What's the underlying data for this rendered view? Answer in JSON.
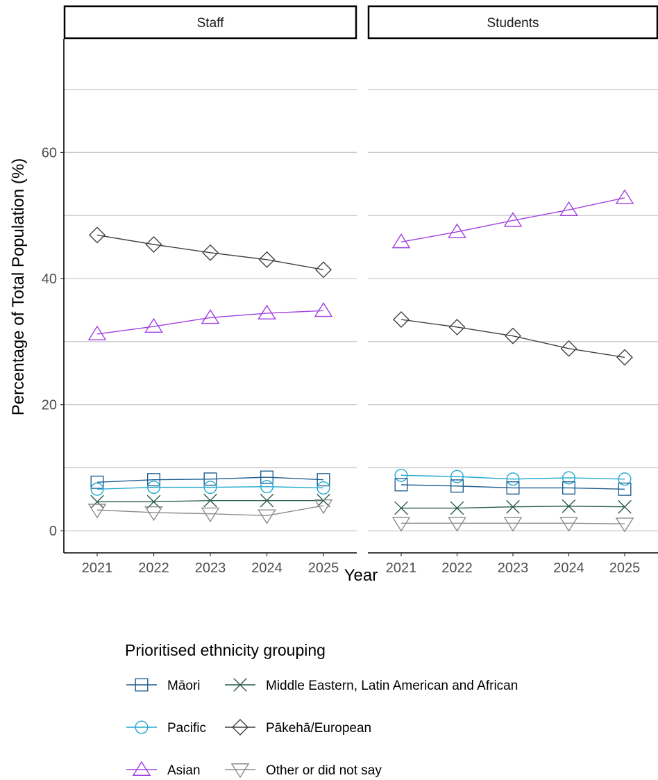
{
  "chart_data": {
    "type": "line",
    "ylabel": "Percentage of Total Population (%)",
    "xlabel": "Year",
    "ylim": [
      -3.5,
      78
    ],
    "y_ticks": [
      0,
      20,
      40,
      60
    ],
    "y_minor_grid": [
      10,
      30,
      50,
      70
    ],
    "x": [
      "2021",
      "2022",
      "2023",
      "2024",
      "2025"
    ],
    "grid": "horizontal",
    "legend_position": "bottom",
    "legend_title": "Prioritised ethnicity grouping",
    "colors": {
      "Māori": "#1f5f91",
      "Middle Eastern, Latin American and African": "#2a5a48",
      "Pacific": "#21a8d0",
      "Pākehā/European": "#404040",
      "Asian": "#a040e0",
      "Other or did not say": "#8c8c8c"
    },
    "markers": {
      "Māori": "square",
      "Middle Eastern, Latin American and African": "x",
      "Pacific": "circle",
      "Pākehā/European": "diamond",
      "Asian": "triangle-up",
      "Other or did not say": "triangle-down"
    },
    "legend_order": [
      "Māori",
      "Middle Eastern, Latin American and African",
      "Pacific",
      "Pākehā/European",
      "Asian",
      "Other or did not say"
    ],
    "panels": [
      {
        "title": "Staff",
        "series": [
          {
            "name": "Pākehā/European",
            "values": [
              46.9,
              45.4,
              44.1,
              43.0,
              41.4
            ]
          },
          {
            "name": "Asian",
            "values": [
              31.2,
              32.4,
              33.8,
              34.5,
              34.9
            ]
          },
          {
            "name": "Māori",
            "values": [
              7.7,
              8.1,
              8.2,
              8.5,
              8.1
            ]
          },
          {
            "name": "Pacific",
            "values": [
              6.6,
              6.9,
              6.9,
              7.0,
              6.8
            ]
          },
          {
            "name": "Middle Eastern, Latin American and African",
            "values": [
              4.6,
              4.6,
              4.8,
              4.8,
              4.8
            ]
          },
          {
            "name": "Other or did not say",
            "values": [
              3.3,
              2.9,
              2.7,
              2.4,
              4.0
            ]
          }
        ]
      },
      {
        "title": "Students",
        "series": [
          {
            "name": "Asian",
            "values": [
              45.8,
              47.4,
              49.2,
              50.9,
              52.8
            ]
          },
          {
            "name": "Pākehā/European",
            "values": [
              33.5,
              32.3,
              30.9,
              28.9,
              27.5
            ]
          },
          {
            "name": "Pacific",
            "values": [
              8.8,
              8.6,
              8.2,
              8.4,
              8.2
            ]
          },
          {
            "name": "Māori",
            "values": [
              7.3,
              7.1,
              6.8,
              6.8,
              6.6
            ]
          },
          {
            "name": "Middle Eastern, Latin American and African",
            "values": [
              3.6,
              3.6,
              3.8,
              3.9,
              3.8
            ]
          },
          {
            "name": "Other or did not say",
            "values": [
              1.2,
              1.2,
              1.2,
              1.2,
              1.1
            ]
          }
        ]
      }
    ]
  }
}
